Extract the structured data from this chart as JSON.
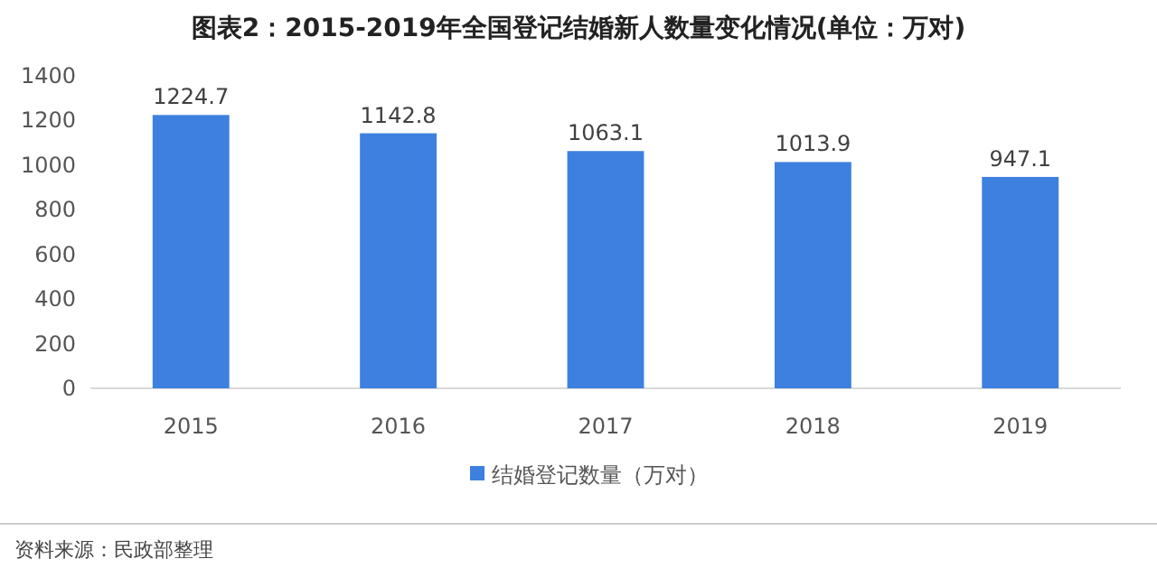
{
  "chart_data": {
    "type": "bar",
    "title": "图表2：2015-2019年全国登记结婚新人数量变化情况(单位：万对)",
    "categories": [
      "2015",
      "2016",
      "2017",
      "2018",
      "2019"
    ],
    "series": [
      {
        "name": "结婚登记数量（万对）",
        "color": "#3d80e0",
        "values": [
          1224.7,
          1142.8,
          1063.1,
          1013.9,
          947.1
        ]
      }
    ],
    "ylim": [
      0,
      1400
    ],
    "yticks": [
      0,
      200,
      400,
      600,
      800,
      1000,
      1200,
      1400
    ],
    "data_labels": true,
    "grid": false,
    "legend": "bottom",
    "annotations": [
      "资料来源：民政部整理"
    ]
  }
}
